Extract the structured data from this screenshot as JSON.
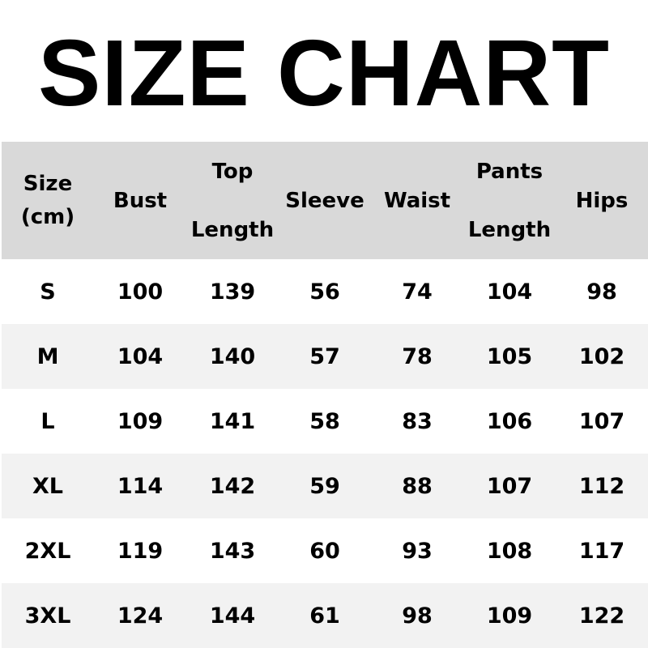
{
  "title": "SIZE CHART",
  "colors": {
    "header_bg": "#d9d9d9",
    "row_alt_bg": "#f2f2f2",
    "row_bg": "#ffffff",
    "text": "#000000"
  },
  "chart_data": {
    "type": "table",
    "title": "SIZE CHART",
    "columns": [
      {
        "line1": "Size",
        "line2": "(cm)"
      },
      {
        "line1": "Bust"
      },
      {
        "line1": "Top",
        "line2": "Length"
      },
      {
        "line1": "Sleeve"
      },
      {
        "line1": "Waist"
      },
      {
        "line1": "Pants",
        "line2": "Length"
      },
      {
        "line1": "Hips"
      }
    ],
    "rows": [
      [
        "S",
        "100",
        "139",
        "56",
        "74",
        "104",
        "98"
      ],
      [
        "M",
        "104",
        "140",
        "57",
        "78",
        "105",
        "102"
      ],
      [
        "L",
        "109",
        "141",
        "58",
        "83",
        "106",
        "107"
      ],
      [
        "XL",
        "114",
        "142",
        "59",
        "88",
        "107",
        "112"
      ],
      [
        "2XL",
        "119",
        "143",
        "60",
        "93",
        "108",
        "117"
      ],
      [
        "3XL",
        "124",
        "144",
        "61",
        "98",
        "109",
        "122"
      ]
    ]
  }
}
